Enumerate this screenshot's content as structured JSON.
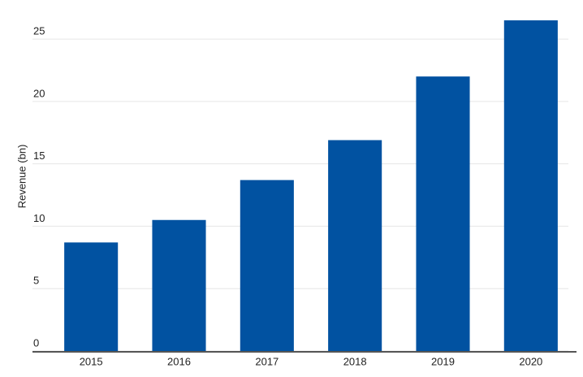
{
  "chart_data": {
    "type": "bar",
    "y_label": "Revenue (bn)",
    "categories": [
      "2015",
      "2016",
      "2017",
      "2018",
      "2019",
      "2020"
    ],
    "values": [
      8.7,
      10.5,
      13.7,
      16.9,
      22.0,
      26.5
    ],
    "color": "#0152a1",
    "ylim": [
      0,
      28
    ],
    "yticks": [
      0,
      5,
      10,
      15,
      20,
      25
    ],
    "grid": true
  }
}
